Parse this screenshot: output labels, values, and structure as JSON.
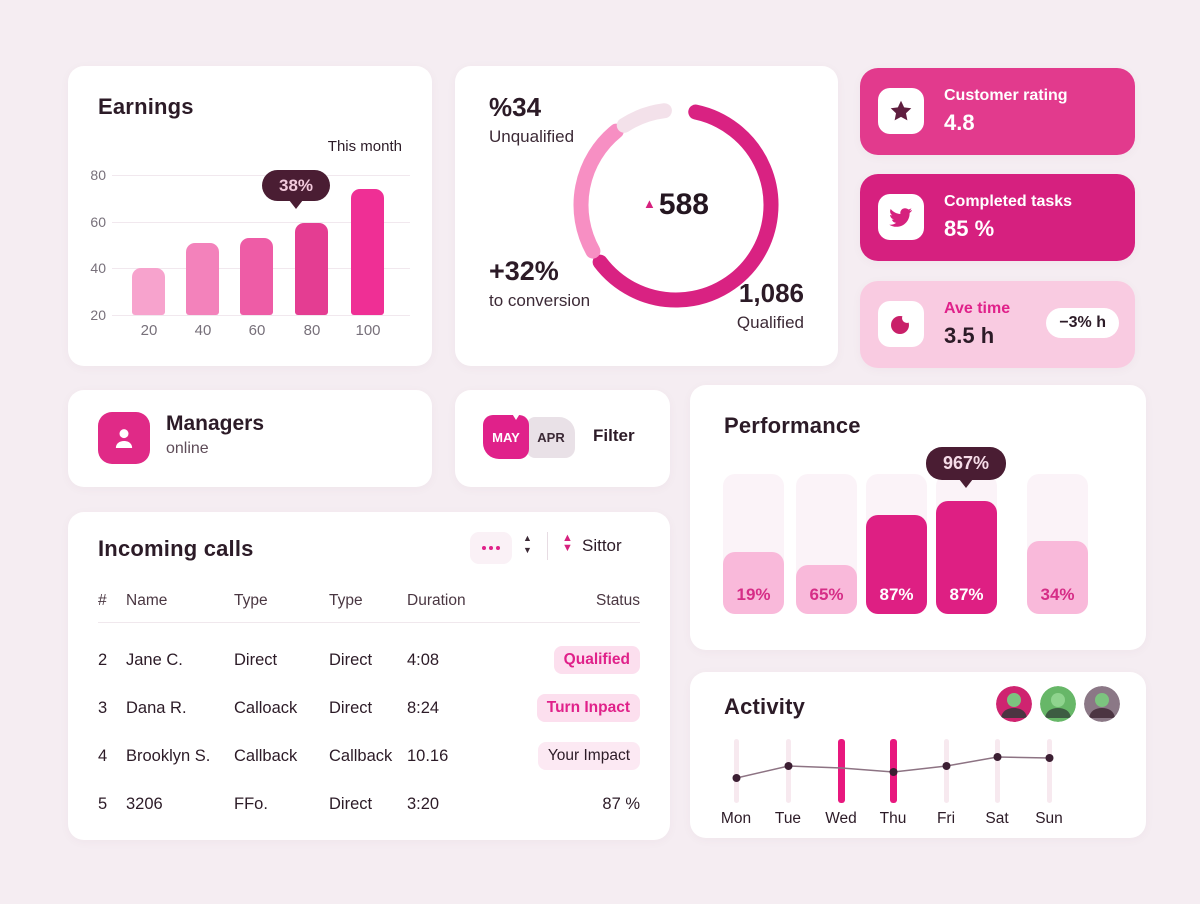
{
  "colors": {
    "page_bg": "#f5edf2",
    "primary": "#e0218a",
    "dark_tooltip": "#4a1d33",
    "earn_bar_colors": [
      "#f7a3cd",
      "#f382bb",
      "#ee5ca6",
      "#e43d92",
      "#ef2f95"
    ],
    "donut_dark": "#d92282",
    "donut_light": "#f78fc3",
    "donut_pale": "#f3e1ea"
  },
  "earnings": {
    "title": "Earnings",
    "legend": "This month",
    "tooltip": "38%",
    "chart": {
      "type": "bar",
      "y_ticks": [
        "80",
        "60",
        "40",
        "20"
      ],
      "x_ticks": [
        "20",
        "40",
        "60",
        "80",
        "100"
      ],
      "values": [
        40,
        51,
        53,
        59.5,
        74
      ],
      "axis_min": 20
    }
  },
  "donut": {
    "unqualified_value": "%34",
    "unqualified_label": "Unqualified",
    "center_value": "588",
    "center_marker": "▲",
    "conversion_value": "+32%",
    "conversion_label": "to conversion",
    "qualified_value": "1,086",
    "qualified_label": "Qualified",
    "segments": [
      {
        "from": 12,
        "to": 233,
        "color": "#d92282"
      },
      {
        "from": 241,
        "to": 321,
        "color": "#f78fc3"
      },
      {
        "from": 327,
        "to": 353,
        "color": "#f3e1ea"
      }
    ]
  },
  "stats": {
    "rating": {
      "label": "Customer rating",
      "value": "4.8"
    },
    "tasks": {
      "label": "Completed tasks",
      "value": "85 %"
    },
    "avetime": {
      "label": "Ave time",
      "value": "3.5 h",
      "badge": "−3% h"
    }
  },
  "managers": {
    "title": "Managers",
    "subtitle": "online"
  },
  "filter": {
    "tab1": "MAY",
    "tab2": "APR",
    "label": "Filter"
  },
  "performance": {
    "title": "Performance",
    "tooltip": "967%",
    "chart": {
      "type": "bar",
      "bars": [
        {
          "label": "19%",
          "height_pct": 44,
          "style": "light"
        },
        {
          "label": "65%",
          "height_pct": 35,
          "style": "light"
        },
        {
          "label": "87%",
          "height_pct": 71,
          "style": "dark"
        },
        {
          "label": "87%",
          "height_pct": 81,
          "style": "dark"
        },
        {
          "label": "34%",
          "height_pct": 52,
          "style": "light"
        }
      ]
    }
  },
  "calls": {
    "title": "Incoming calls",
    "sort_label": "Sittor",
    "headers": [
      "#",
      "Name",
      "Type",
      "Type",
      "Duration",
      "Status"
    ],
    "rows": [
      {
        "num": "2",
        "name": "Jane C.",
        "type1": "Direct",
        "type2": "Direct",
        "duration": "4:08",
        "status": "Qualified"
      },
      {
        "num": "3",
        "name": "Dana R.",
        "type1": "Calloack",
        "type2": "Direct",
        "duration": "8:24",
        "status": "Turn Inpact"
      },
      {
        "num": "4",
        "name": "Brooklyn S.",
        "type1": "Callback",
        "type2": "Callback",
        "duration": "10.16",
        "status": "Your Impact"
      },
      {
        "num": "5",
        "name": "3206",
        "type1": "FFo.",
        "type2": "Direct",
        "duration": "3:20",
        "status": "87 %"
      }
    ]
  },
  "activity": {
    "title": "Activity",
    "days": [
      "Mon",
      "Tue",
      "Wed",
      "Thu",
      "Fri",
      "Sat",
      "Sun"
    ],
    "highlight_days": [
      "Wed",
      "Thu"
    ],
    "line_y": [
      106,
      94,
      96,
      100,
      94,
      85,
      86
    ],
    "dot_indices": [
      0,
      1,
      3,
      4,
      5,
      6
    ]
  }
}
